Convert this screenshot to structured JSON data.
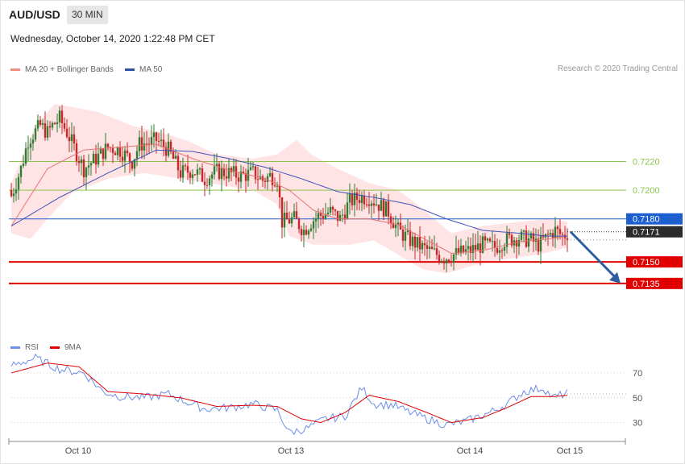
{
  "header": {
    "symbol": "AUD/USD",
    "timeframe": "30 MIN",
    "datetime": "Wednesday, October 14, 2020 1:22:48 PM CET",
    "credit": "Research © 2020 Trading Central"
  },
  "legend": {
    "ma20_label": "MA 20 + Bollinger Bands",
    "ma50_label": "MA 50",
    "rsi_label": "RSI",
    "rsi_ma_label": "9MA"
  },
  "colors": {
    "up": "#2e7d32",
    "down": "#c62828",
    "ma20": "#e57373",
    "ma50": "#3f51b5",
    "band": "#ffcdd2",
    "support": "#e00000",
    "resistance_green": "#8bc34a",
    "pivot": "#1e5fd0",
    "arrow": "#2d5fa0"
  },
  "chart_data": [
    {
      "type": "candlestick",
      "title": "AUD/USD 30 MIN",
      "ylim": [
        0.7122,
        0.7268
      ],
      "x_tick_labels": [
        "Oct 10",
        "Oct 13",
        "Oct 14",
        "Oct 15"
      ],
      "levels": [
        {
          "value": 0.722,
          "label": "0.7220",
          "kind": "resistance"
        },
        {
          "value": 0.72,
          "label": "0.7200",
          "kind": "resistance"
        },
        {
          "value": 0.718,
          "label": "0.7180",
          "kind": "pivot"
        },
        {
          "value": 0.715,
          "label": "0.7150",
          "kind": "support"
        },
        {
          "value": 0.7135,
          "label": "0.7135",
          "kind": "support"
        }
      ],
      "last_price": {
        "value": 0.7171,
        "label": "0.7171"
      },
      "forecast_arrow": {
        "from": 0.7171,
        "to": 0.7135
      },
      "close_anchors": [
        [
          0,
          0.7196
        ],
        [
          4,
          0.7215
        ],
        [
          7,
          0.7235
        ],
        [
          12,
          0.7245
        ],
        [
          15,
          0.724
        ],
        [
          17,
          0.7245
        ],
        [
          20,
          0.725
        ],
        [
          24,
          0.7237
        ],
        [
          30,
          0.7215
        ],
        [
          35,
          0.7222
        ],
        [
          40,
          0.723
        ],
        [
          45,
          0.7228
        ],
        [
          50,
          0.722
        ],
        [
          53,
          0.7232
        ],
        [
          57,
          0.7233
        ],
        [
          60,
          0.7235
        ],
        [
          65,
          0.7228
        ],
        [
          70,
          0.7212
        ],
        [
          75,
          0.7214
        ],
        [
          80,
          0.7208
        ],
        [
          85,
          0.7213
        ],
        [
          90,
          0.7212
        ],
        [
          95,
          0.721
        ],
        [
          100,
          0.7212
        ],
        [
          104,
          0.7207
        ],
        [
          107,
          0.721
        ],
        [
          110,
          0.7208
        ],
        [
          112,
          0.7178
        ],
        [
          117,
          0.718
        ],
        [
          121,
          0.7172
        ],
        [
          124,
          0.7178
        ],
        [
          127,
          0.7182
        ],
        [
          132,
          0.7185
        ],
        [
          136,
          0.718
        ],
        [
          140,
          0.7192
        ],
        [
          144,
          0.7195
        ],
        [
          148,
          0.7195
        ],
        [
          152,
          0.719
        ],
        [
          156,
          0.7185
        ],
        [
          160,
          0.7172
        ],
        [
          165,
          0.7165
        ],
        [
          170,
          0.716
        ],
        [
          175,
          0.7156
        ],
        [
          179,
          0.7153
        ],
        [
          185,
          0.7156
        ],
        [
          190,
          0.7158
        ],
        [
          195,
          0.7162
        ],
        [
          200,
          0.716
        ],
        [
          204,
          0.7165
        ],
        [
          210,
          0.7167
        ],
        [
          215,
          0.7165
        ],
        [
          218,
          0.7162
        ],
        [
          222,
          0.7168
        ],
        [
          225,
          0.7172
        ],
        [
          228,
          0.7168
        ],
        [
          230,
          0.717
        ]
      ],
      "ma20_anchors": [
        [
          0,
          0.7175
        ],
        [
          15,
          0.7215
        ],
        [
          30,
          0.7228
        ],
        [
          45,
          0.723
        ],
        [
          60,
          0.7232
        ],
        [
          75,
          0.7222
        ],
        [
          90,
          0.7214
        ],
        [
          105,
          0.7208
        ],
        [
          115,
          0.72
        ],
        [
          125,
          0.7186
        ],
        [
          135,
          0.718
        ],
        [
          148,
          0.718
        ],
        [
          160,
          0.7176
        ],
        [
          172,
          0.7165
        ],
        [
          182,
          0.7156
        ],
        [
          195,
          0.7158
        ],
        [
          210,
          0.7164
        ],
        [
          222,
          0.7166
        ],
        [
          230,
          0.7168
        ]
      ],
      "ma50_anchors": [
        [
          0,
          0.7175
        ],
        [
          20,
          0.7195
        ],
        [
          40,
          0.7212
        ],
        [
          60,
          0.7228
        ],
        [
          75,
          0.7227
        ],
        [
          90,
          0.7222
        ],
        [
          105,
          0.7216
        ],
        [
          120,
          0.7208
        ],
        [
          135,
          0.7199
        ],
        [
          150,
          0.7195
        ],
        [
          165,
          0.719
        ],
        [
          180,
          0.718
        ],
        [
          195,
          0.7172
        ],
        [
          210,
          0.717
        ],
        [
          222,
          0.7168
        ],
        [
          230,
          0.7168
        ]
      ],
      "band_upper_anchors": [
        [
          0,
          0.7205
        ],
        [
          10,
          0.7245
        ],
        [
          18,
          0.726
        ],
        [
          35,
          0.7255
        ],
        [
          50,
          0.7245
        ],
        [
          62,
          0.724
        ],
        [
          72,
          0.7235
        ],
        [
          85,
          0.7225
        ],
        [
          100,
          0.7222
        ],
        [
          110,
          0.7225
        ],
        [
          118,
          0.7235
        ],
        [
          124,
          0.7225
        ],
        [
          135,
          0.7215
        ],
        [
          148,
          0.7205
        ],
        [
          160,
          0.72
        ],
        [
          168,
          0.719
        ],
        [
          175,
          0.718
        ],
        [
          182,
          0.717
        ],
        [
          195,
          0.7175
        ],
        [
          210,
          0.7178
        ],
        [
          222,
          0.718
        ],
        [
          230,
          0.7178
        ]
      ],
      "band_lower_anchors": [
        [
          0,
          0.717
        ],
        [
          8,
          0.7166
        ],
        [
          15,
          0.718
        ],
        [
          25,
          0.7198
        ],
        [
          40,
          0.7208
        ],
        [
          55,
          0.7212
        ],
        [
          70,
          0.7208
        ],
        [
          85,
          0.7204
        ],
        [
          100,
          0.72
        ],
        [
          110,
          0.719
        ],
        [
          115,
          0.7168
        ],
        [
          125,
          0.7162
        ],
        [
          140,
          0.7162
        ],
        [
          150,
          0.7165
        ],
        [
          160,
          0.7155
        ],
        [
          170,
          0.7145
        ],
        [
          180,
          0.7142
        ],
        [
          192,
          0.7148
        ],
        [
          205,
          0.7152
        ],
        [
          218,
          0.7155
        ],
        [
          230,
          0.716
        ]
      ]
    },
    {
      "type": "line",
      "title": "RSI",
      "ylim": [
        18,
        83
      ],
      "y_ticks": [
        70,
        50,
        30
      ],
      "x_tick_labels": [
        "Oct 10",
        "Oct 13",
        "Oct 14",
        "Oct 15"
      ],
      "series": [
        {
          "name": "RSI",
          "anchors": [
            [
              0,
              76
            ],
            [
              10,
              82
            ],
            [
              20,
              73
            ],
            [
              30,
              70
            ],
            [
              38,
              55
            ],
            [
              45,
              51
            ],
            [
              55,
              50
            ],
            [
              65,
              53
            ],
            [
              72,
              47
            ],
            [
              80,
              41
            ],
            [
              90,
              42
            ],
            [
              100,
              45
            ],
            [
              110,
              40
            ],
            [
              115,
              22
            ],
            [
              122,
              25
            ],
            [
              130,
              33
            ],
            [
              138,
              35
            ],
            [
              145,
              58
            ],
            [
              150,
              45
            ],
            [
              158,
              44
            ],
            [
              165,
              38
            ],
            [
              172,
              33
            ],
            [
              180,
              28
            ],
            [
              188,
              31
            ],
            [
              198,
              38
            ],
            [
              205,
              45
            ],
            [
              212,
              55
            ],
            [
              220,
              58
            ],
            [
              224,
              50
            ],
            [
              230,
              54
            ]
          ]
        },
        {
          "name": "9MA",
          "anchors": [
            [
              0,
              70
            ],
            [
              15,
              78
            ],
            [
              28,
              75
            ],
            [
              40,
              55
            ],
            [
              55,
              53
            ],
            [
              70,
              50
            ],
            [
              85,
              43
            ],
            [
              100,
              44
            ],
            [
              110,
              43
            ],
            [
              120,
              33
            ],
            [
              128,
              30
            ],
            [
              138,
              38
            ],
            [
              148,
              52
            ],
            [
              160,
              47
            ],
            [
              172,
              38
            ],
            [
              182,
              30
            ],
            [
              195,
              34
            ],
            [
              205,
              42
            ],
            [
              215,
              51
            ],
            [
              225,
              51
            ],
            [
              230,
              52
            ]
          ]
        }
      ]
    }
  ]
}
